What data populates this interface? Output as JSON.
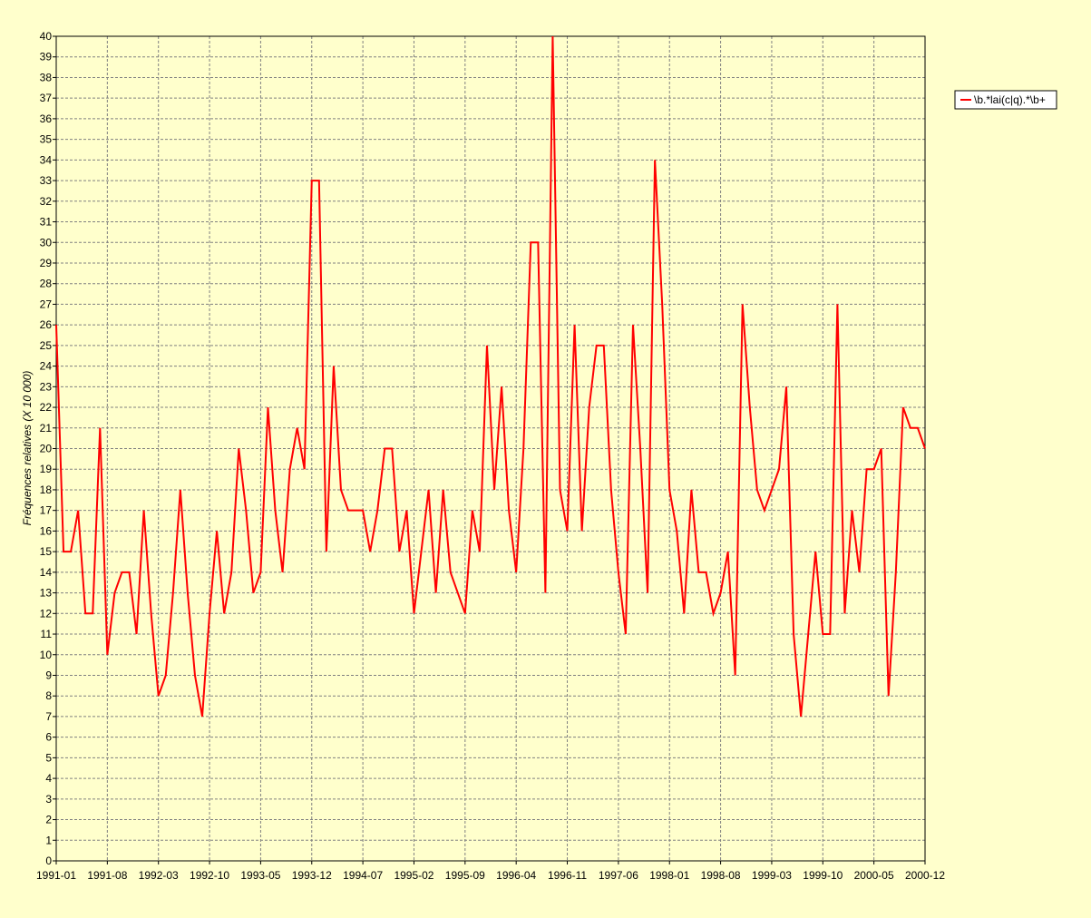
{
  "chart_data": {
    "type": "line",
    "y_label": "Fréquences relatives (X 10 000)",
    "categories": [
      "1991-01",
      null,
      null,
      null,
      null,
      null,
      null,
      "1991-08",
      null,
      null,
      null,
      null,
      null,
      null,
      "1992-03",
      null,
      null,
      null,
      null,
      null,
      null,
      "1992-10",
      null,
      null,
      null,
      null,
      null,
      null,
      "1993-05",
      null,
      null,
      null,
      null,
      null,
      null,
      "1993-12",
      null,
      null,
      null,
      null,
      null,
      null,
      "1994-07",
      null,
      null,
      null,
      null,
      null,
      null,
      "1995-02",
      null,
      null,
      null,
      null,
      null,
      null,
      "1995-09",
      null,
      null,
      null,
      null,
      null,
      null,
      "1996-04",
      null,
      null,
      null,
      null,
      null,
      null,
      "1996-11",
      null,
      null,
      null,
      null,
      null,
      null,
      "1997-06",
      null,
      null,
      null,
      null,
      null,
      null,
      "1998-01",
      null,
      null,
      null,
      null,
      null,
      null,
      "1998-08",
      null,
      null,
      null,
      null,
      null,
      null,
      "1999-03",
      null,
      null,
      null,
      null,
      null,
      null,
      "1999-10",
      null,
      null,
      null,
      null,
      null,
      null,
      "2000-05",
      null,
      null,
      null,
      null,
      null,
      null,
      "2000-12"
    ],
    "series": [
      {
        "name": "\\b.*lai(c|q).*\\b+",
        "color": "#ff0000",
        "values": [
          26,
          15,
          15,
          17,
          12,
          12,
          21,
          10,
          13,
          14,
          14,
          11,
          17,
          12,
          8,
          9,
          13,
          18,
          13,
          9,
          7,
          12,
          16,
          12,
          14,
          20,
          17,
          13,
          14,
          22,
          17,
          14,
          19,
          21,
          19,
          33,
          33,
          15,
          24,
          18,
          17,
          17,
          17,
          15,
          17,
          20,
          20,
          15,
          17,
          12,
          15,
          18,
          13,
          18,
          14,
          13,
          12,
          17,
          15,
          25,
          18,
          23,
          17,
          14,
          20,
          30,
          30,
          13,
          40,
          18,
          16,
          26,
          16,
          22,
          25,
          25,
          18,
          14,
          11,
          26,
          20,
          13,
          34,
          27,
          18,
          16,
          12,
          18,
          14,
          14,
          12,
          13,
          15,
          9,
          27,
          22,
          18,
          17,
          18,
          19,
          23,
          11,
          7,
          11,
          15,
          11,
          11,
          27,
          12,
          17,
          14,
          19,
          19,
          20,
          8,
          14,
          22,
          21,
          21,
          20
        ]
      }
    ],
    "ylim": [
      0,
      40
    ],
    "yticks": [
      0,
      1,
      2,
      3,
      4,
      5,
      6,
      7,
      8,
      9,
      10,
      11,
      12,
      13,
      14,
      15,
      16,
      17,
      18,
      19,
      20,
      21,
      22,
      23,
      24,
      25,
      26,
      27,
      28,
      29,
      30,
      31,
      32,
      33,
      34,
      35,
      36,
      37,
      38,
      39,
      40
    ],
    "grid": true,
    "legend": "top-right"
  }
}
